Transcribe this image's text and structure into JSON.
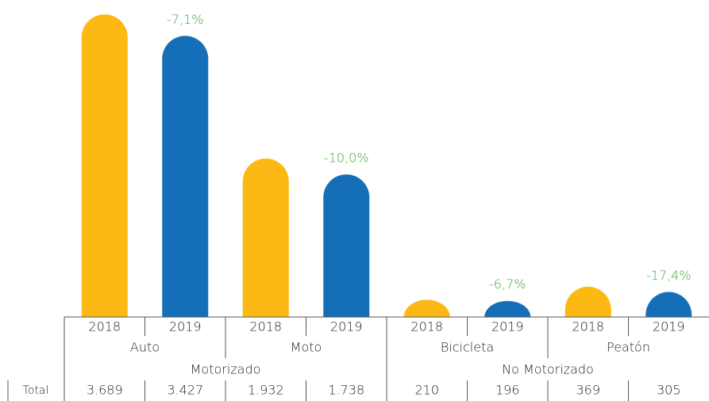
{
  "chart_data": {
    "type": "bar",
    "categories": [
      "Auto",
      "Moto",
      "Bicicleta",
      "Peatón"
    ],
    "groups": [
      "Motorizado",
      "No Motorizado"
    ],
    "row_label": "Total",
    "series": [
      {
        "name": "2018",
        "color": "#fdb913",
        "values": [
          3689,
          1932,
          210,
          369
        ],
        "value_labels": [
          "3.689",
          "1.932",
          "210",
          "369"
        ]
      },
      {
        "name": "2019",
        "color": "#146fb8",
        "values": [
          3427,
          1738,
          196,
          305
        ],
        "value_labels": [
          "3.427",
          "1.738",
          "196",
          "305"
        ]
      }
    ],
    "annotations": [
      {
        "value": -7.1,
        "label": "-7,1%"
      },
      {
        "value": -10.0,
        "label": "-10,0%"
      },
      {
        "value": -6.7,
        "label": "-6,7%"
      },
      {
        "value": -17.4,
        "label": "-17,4%"
      }
    ],
    "annotation_color": "#3aaa35",
    "ylim": [
      0,
      3700
    ]
  }
}
